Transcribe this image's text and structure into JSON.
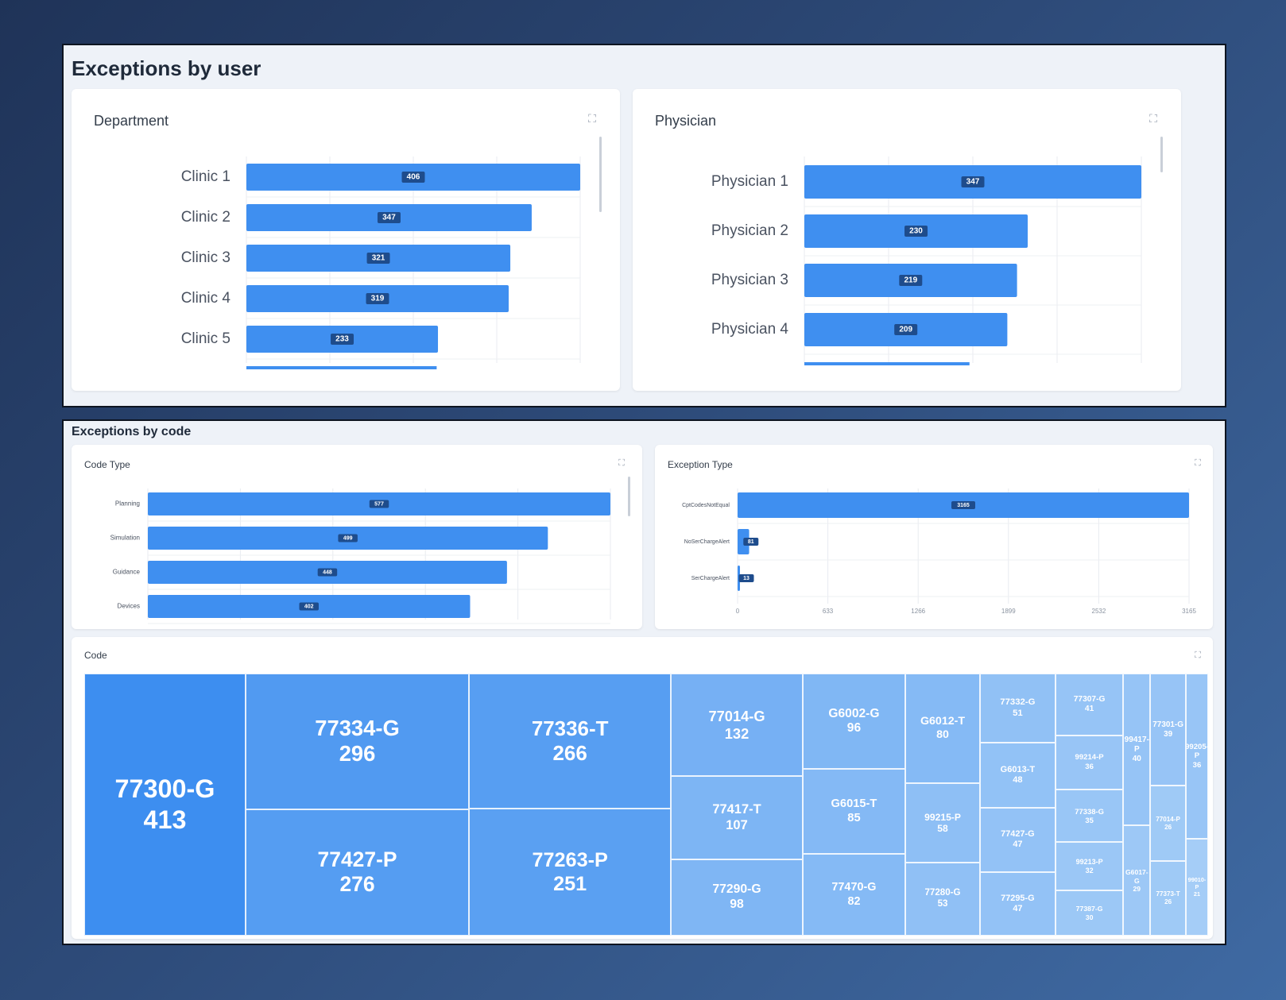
{
  "sections": {
    "user": {
      "title": "Exceptions by user"
    },
    "code": {
      "title": "Exceptions by code"
    }
  },
  "colors": {
    "bar": "#3f8ff0",
    "tile_dark": "#3d8ef0",
    "tile_light": "#a8cff7"
  },
  "cards": {
    "department": {
      "title": "Department"
    },
    "physician": {
      "title": "Physician"
    },
    "code_type": {
      "title": "Code Type"
    },
    "exception_type": {
      "title": "Exception Type"
    },
    "code": {
      "title": "Code"
    }
  },
  "chart_data": [
    {
      "id": "department",
      "type": "bar",
      "orientation": "horizontal",
      "categories": [
        "Clinic 1",
        "Clinic 2",
        "Clinic 3",
        "Clinic 4",
        "Clinic 5"
      ],
      "values": [
        406,
        347,
        321,
        319,
        233
      ],
      "xlim": [
        0,
        406
      ]
    },
    {
      "id": "physician",
      "type": "bar",
      "orientation": "horizontal",
      "categories": [
        "Physician 1",
        "Physician 2",
        "Physician 3",
        "Physician 4"
      ],
      "values": [
        347,
        230,
        219,
        209
      ],
      "xlim": [
        0,
        347
      ]
    },
    {
      "id": "code_type",
      "type": "bar",
      "orientation": "horizontal",
      "categories": [
        "Planning",
        "Simulation",
        "Guidance",
        "Devices"
      ],
      "values": [
        577,
        499,
        448,
        402
      ],
      "xlim": [
        0,
        577
      ]
    },
    {
      "id": "exception_type",
      "type": "bar",
      "orientation": "horizontal",
      "categories": [
        "CptCodesNotEqual",
        "NoSerChargeAlert",
        "SerChargeAlert"
      ],
      "values": [
        3165,
        81,
        13
      ],
      "xticks": [
        0,
        633,
        1266,
        1899,
        2532,
        3165
      ],
      "xlim": [
        0,
        3165
      ]
    },
    {
      "id": "code",
      "type": "treemap",
      "items": [
        {
          "label": "77300-G",
          "value": 413
        },
        {
          "label": "77334-G",
          "value": 296
        },
        {
          "label": "77427-P",
          "value": 276
        },
        {
          "label": "77336-T",
          "value": 266
        },
        {
          "label": "77263-P",
          "value": 251
        },
        {
          "label": "77014-G",
          "value": 132
        },
        {
          "label": "77417-T",
          "value": 107
        },
        {
          "label": "77290-G",
          "value": 98
        },
        {
          "label": "G6002-G",
          "value": 96
        },
        {
          "label": "G6015-T",
          "value": 85
        },
        {
          "label": "77470-G",
          "value": 82
        },
        {
          "label": "G6012-T",
          "value": 80
        },
        {
          "label": "99215-P",
          "value": 58
        },
        {
          "label": "77280-G",
          "value": 53
        },
        {
          "label": "77332-G",
          "value": 51
        },
        {
          "label": "G6013-T",
          "value": 48
        },
        {
          "label": "77427-G",
          "value": 47
        },
        {
          "label": "77295-G",
          "value": 47
        },
        {
          "label": "77307-G",
          "value": 41
        },
        {
          "label": "99214-P",
          "value": 36
        },
        {
          "label": "77338-G",
          "value": 35
        },
        {
          "label": "99213-P",
          "value": 32
        },
        {
          "label": "77387-G",
          "value": 30
        },
        {
          "label": "99417-P",
          "value": 40
        },
        {
          "label": "G6017-G",
          "value": 29
        },
        {
          "label": "77301-G",
          "value": 39
        },
        {
          "label": "77014-P",
          "value": 26
        },
        {
          "label": "77373-T",
          "value": 26
        },
        {
          "label": "99205-P",
          "value": 36
        },
        {
          "label": "99010-P",
          "value": 21
        }
      ]
    }
  ]
}
